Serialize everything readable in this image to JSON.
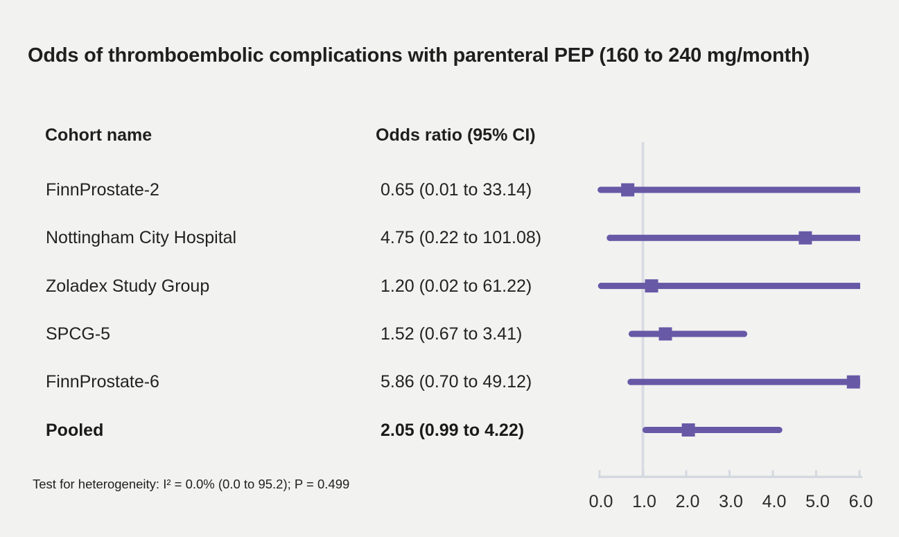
{
  "title": "Odds of thromboembolic complications with parenteral PEP (160 to 240 mg/month)",
  "columns": {
    "cohort": "Cohort name",
    "odds_ratio": "Odds ratio (95% CI)"
  },
  "footnote": "Test for heterogeneity: I² = 0.0% (0.0 to 95.2); P = 0.499",
  "colors": {
    "background": "#f2f2f1",
    "purple": "#6859a6",
    "axis_gray": "#d4d9e0",
    "reference_line_gray": "#d9dce3",
    "text": "#1f1f1f"
  },
  "chart_data": {
    "type": "forest",
    "title": "Odds of thromboembolic complications with parenteral PEP (160 to 240 mg/month)",
    "x_range": [
      0.0,
      6.0
    ],
    "x_ticks": [
      "0.0",
      "1.0",
      "2.0",
      "3.0",
      "4.0",
      "5.0",
      "6.0"
    ],
    "x_tick_values": [
      0,
      1,
      2,
      3,
      4,
      5,
      6
    ],
    "reference_line": 1.0,
    "grid": false,
    "legend": "none",
    "rows": [
      {
        "cohort": "FinnProstate-2",
        "or_label": "0.65 (0.01 to 33.14)",
        "or": 0.65,
        "ci_low": 0.01,
        "ci_high": 33.14,
        "pooled": false
      },
      {
        "cohort": "Nottingham City Hospital",
        "or_label": "4.75 (0.22 to 101.08)",
        "or": 4.75,
        "ci_low": 0.22,
        "ci_high": 101.08,
        "pooled": false
      },
      {
        "cohort": "Zoladex Study Group",
        "or_label": "1.20 (0.02 to 61.22)",
        "or": 1.2,
        "ci_low": 0.02,
        "ci_high": 61.22,
        "pooled": false
      },
      {
        "cohort": "SPCG-5",
        "or_label": "1.52 (0.67 to 3.41)",
        "or": 1.52,
        "ci_low": 0.67,
        "ci_high": 3.41,
        "pooled": false
      },
      {
        "cohort": "FinnProstate-6",
        "or_label": "5.86 (0.70 to 49.12)",
        "or": 5.86,
        "ci_low": 0.7,
        "ci_high": 49.12,
        "pooled": false
      },
      {
        "cohort": "Pooled",
        "or_label": "2.05 (0.99 to 4.22)",
        "or": 2.05,
        "ci_low": 0.99,
        "ci_high": 4.22,
        "pooled": true
      }
    ]
  }
}
